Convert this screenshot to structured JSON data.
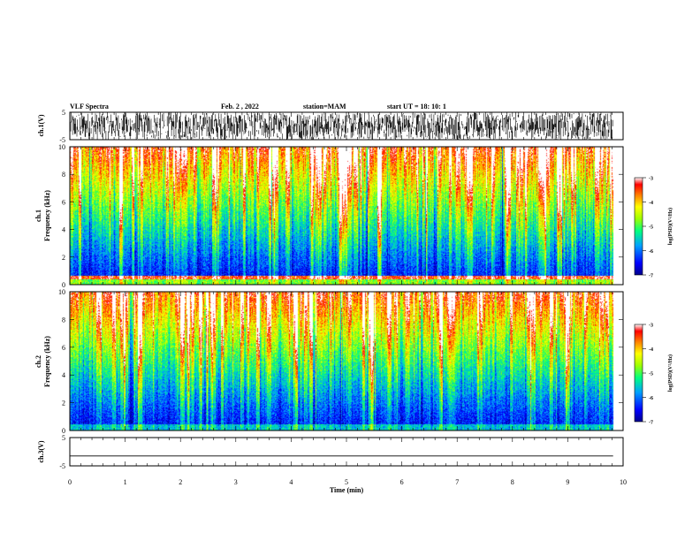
{
  "header": {
    "title": "VLF Spectra",
    "date": "Feb. 2  , 2022",
    "station": "station=MAM",
    "start_ut": "start  UT =   18: 10: 1"
  },
  "colors": {
    "scale": [
      "#00008c",
      "#0000ff",
      "#0064ff",
      "#00c8ff",
      "#00ff80",
      "#80ff00",
      "#ffff00",
      "#ffa000",
      "#ff2800",
      "#ffffff"
    ],
    "trace": "#000000"
  },
  "chart_data": [
    {
      "type": "line",
      "name": "ch1-waveform",
      "ylabel": "ch.1(V)",
      "ylim": [
        -5,
        5
      ],
      "yticks": [
        "5",
        "-5"
      ],
      "xlim": [
        0,
        10
      ],
      "description_value": "dense noise-like signal spanning about -5 to 5 V, ends near x=9.8"
    },
    {
      "type": "heatmap",
      "name": "ch1-spectrogram",
      "ylabel_line1": "ch.1",
      "ylabel_line2": "Frequency  (kHz)",
      "ylim": [
        0,
        10
      ],
      "yticks": [
        "0",
        "2",
        "4",
        "6",
        "8",
        "10"
      ],
      "xlim": [
        0,
        10
      ],
      "data_xmax": 9.82,
      "colorbar": {
        "label": "log(PSD)(V²/Hz)",
        "range": [
          -7,
          -3
        ],
        "ticks": [
          "-3",
          "-4",
          "-5",
          "-6",
          "-7"
        ]
      }
    },
    {
      "type": "heatmap",
      "name": "ch2-spectrogram",
      "ylabel_line1": "ch.2",
      "ylabel_line2": "Frequency  (kHz)",
      "ylim": [
        0,
        10
      ],
      "yticks": [
        "0",
        "2",
        "4",
        "6",
        "8",
        "10"
      ],
      "xlim": [
        0,
        10
      ],
      "data_xmax": 9.82,
      "colorbar": {
        "label": "log(PSD)(V²/Hz)",
        "range": [
          -7,
          -3
        ],
        "ticks": [
          "-3",
          "-4",
          "-5",
          "-6",
          "-7"
        ]
      }
    },
    {
      "type": "line",
      "name": "ch3-waveform",
      "ylabel": "ch.3(V)",
      "ylim": [
        -5,
        5
      ],
      "yticks": [
        "5",
        "-5"
      ],
      "xlim": [
        0,
        10
      ],
      "x": [
        0,
        9.82
      ],
      "y": [
        -1.5,
        -1.5
      ]
    }
  ],
  "xaxis": {
    "label": "Time  (min)",
    "ticks": [
      "0",
      "1",
      "2",
      "3",
      "4",
      "5",
      "6",
      "7",
      "8",
      "9",
      "10"
    ]
  }
}
